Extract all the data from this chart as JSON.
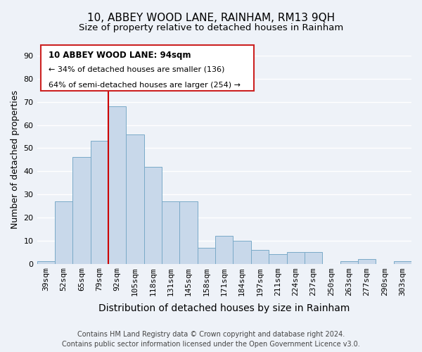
{
  "title": "10, ABBEY WOOD LANE, RAINHAM, RM13 9QH",
  "subtitle": "Size of property relative to detached houses in Rainham",
  "xlabel": "Distribution of detached houses by size in Rainham",
  "ylabel": "Number of detached properties",
  "categories": [
    "39sqm",
    "52sqm",
    "65sqm",
    "79sqm",
    "92sqm",
    "105sqm",
    "118sqm",
    "131sqm",
    "145sqm",
    "158sqm",
    "171sqm",
    "184sqm",
    "197sqm",
    "211sqm",
    "224sqm",
    "237sqm",
    "250sqm",
    "263sqm",
    "277sqm",
    "290sqm",
    "303sqm"
  ],
  "values": [
    1,
    27,
    46,
    53,
    68,
    56,
    42,
    27,
    27,
    7,
    12,
    10,
    6,
    4,
    5,
    5,
    0,
    1,
    2,
    0,
    1
  ],
  "bar_color": "#c8d8ea",
  "bar_edgecolor": "#7aaac8",
  "vline_index": 4,
  "vline_color": "#cc0000",
  "ylim": [
    0,
    90
  ],
  "yticks": [
    0,
    10,
    20,
    30,
    40,
    50,
    60,
    70,
    80,
    90
  ],
  "annotation_line1": "10 ABBEY WOOD LANE: 94sqm",
  "annotation_line2": "← 34% of detached houses are smaller (136)",
  "annotation_line3": "64% of semi-detached houses are larger (254) →",
  "footer_line1": "Contains HM Land Registry data © Crown copyright and database right 2024.",
  "footer_line2": "Contains public sector information licensed under the Open Government Licence v3.0.",
  "background_color": "#eef2f8",
  "grid_color": "#ffffff",
  "title_fontsize": 11,
  "subtitle_fontsize": 9.5,
  "xlabel_fontsize": 10,
  "ylabel_fontsize": 9,
  "footer_fontsize": 7,
  "tick_fontsize": 8,
  "annotation_fontsize": 8.5
}
